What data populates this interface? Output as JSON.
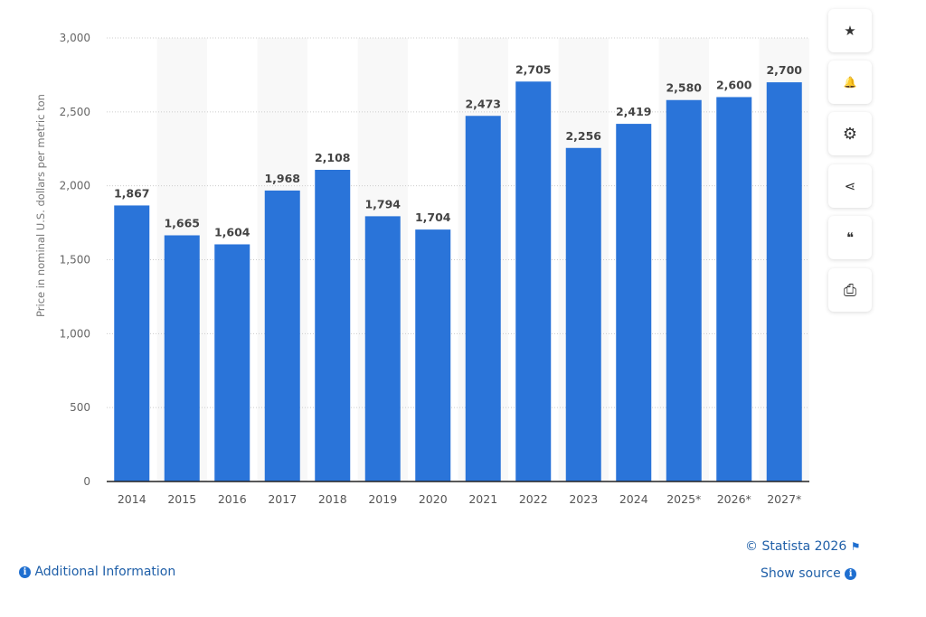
{
  "chart_data": {
    "type": "bar",
    "categories": [
      "2014",
      "2015",
      "2016",
      "2017",
      "2018",
      "2019",
      "2020",
      "2021",
      "2022",
      "2023",
      "2024",
      "2025*",
      "2026*",
      "2027*"
    ],
    "values": [
      1867,
      1665,
      1604,
      1968,
      2108,
      1794,
      1704,
      2473,
      2705,
      2256,
      2419,
      2580,
      2600,
      2700
    ],
    "labels": [
      "1,867",
      "1,665",
      "1,604",
      "1,968",
      "2,108",
      "1,794",
      "1,704",
      "2,473",
      "2,705",
      "2,256",
      "2,419",
      "2,580",
      "2,600",
      "2,700"
    ],
    "ylabel": "Price in nominal U.S. dollars per metric ton",
    "ylim": [
      0,
      3000
    ],
    "yticks": [
      0,
      500,
      1000,
      1500,
      2000,
      2500,
      3000
    ],
    "ytick_labels": [
      "0",
      "500",
      "1,000",
      "1,500",
      "2,000",
      "2,500",
      "3,000"
    ],
    "grid": true,
    "bar_color": "#2a74d9"
  },
  "sidebar": [
    {
      "icon": "star-icon",
      "glyph": "★"
    },
    {
      "icon": "bell-icon",
      "glyph": "🔔"
    },
    {
      "icon": "gear-icon",
      "glyph": "⚙"
    },
    {
      "icon": "share-icon",
      "glyph": "⋖"
    },
    {
      "icon": "quote-icon",
      "glyph": "❝"
    },
    {
      "icon": "print-icon",
      "glyph": "⎙"
    }
  ],
  "footer": {
    "copyright": "© Statista 2026",
    "show_source": "Show source",
    "additional_info": "Additional Information"
  }
}
